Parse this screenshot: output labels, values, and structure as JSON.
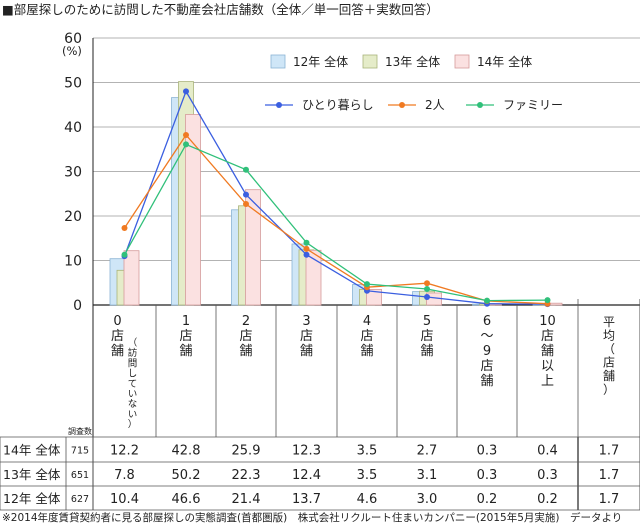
{
  "chart_data": {
    "type": "bar",
    "title": "■部屋探しのために訪問した不動産会社店舗数（全体／単一回答＋実数回答）",
    "y_unit": "(%)",
    "ylim": [
      0,
      60
    ],
    "yticks": [
      "0",
      "10",
      "20",
      "30",
      "40",
      "50",
      "60"
    ],
    "categories": [
      {
        "main": [
          "0",
          "店",
          "舗"
        ],
        "sub": "（訪問していない）"
      },
      {
        "main": [
          "1",
          "店",
          "舗"
        ]
      },
      {
        "main": [
          "2",
          "店",
          "舗"
        ]
      },
      {
        "main": [
          "3",
          "店",
          "舗"
        ]
      },
      {
        "main": [
          "4",
          "店",
          "舗"
        ]
      },
      {
        "main": [
          "5",
          "店",
          "舗"
        ]
      },
      {
        "main": [
          "6",
          "～",
          "9",
          "店",
          "舗"
        ]
      },
      {
        "main": [
          "10",
          "店",
          "舗",
          "以",
          "上"
        ]
      }
    ],
    "average_header": "平均（店舗）",
    "sample_header": "調査数",
    "series": [
      {
        "name": "12年 全体",
        "n": "627",
        "color": "#cfe6f7",
        "stroke": "#8ab4d4",
        "values": [
          10.4,
          46.6,
          21.4,
          13.7,
          4.6,
          3.0,
          0.2,
          0.2
        ],
        "labels": [
          "10.4",
          "46.6",
          "21.4",
          "13.7",
          "4.6",
          "3.0",
          "0.2",
          "0.2"
        ],
        "avg": "1.7"
      },
      {
        "name": "13年 全体",
        "n": "651",
        "color": "#e5ecc9",
        "stroke": "#a9b47a",
        "values": [
          7.8,
          50.2,
          22.3,
          12.4,
          3.5,
          3.1,
          0.3,
          0.3
        ],
        "labels": [
          "7.8",
          "50.2",
          "22.3",
          "12.4",
          "3.5",
          "3.1",
          "0.3",
          "0.3"
        ],
        "avg": "1.7"
      },
      {
        "name": "14年 全体",
        "n": "715",
        "color": "#fbe1e1",
        "stroke": "#d59b9b",
        "values": [
          12.2,
          42.8,
          25.9,
          12.3,
          3.5,
          2.7,
          0.3,
          0.4
        ],
        "labels": [
          "12.2",
          "42.8",
          "25.9",
          "12.3",
          "3.5",
          "2.7",
          "0.3",
          "0.4"
        ],
        "avg": "1.7"
      }
    ],
    "table_order": [
      2,
      1,
      0
    ],
    "line_series": [
      {
        "name": "ひとり暮らし",
        "color": "#3b5fe0",
        "values": [
          11.0,
          48.0,
          24.8,
          11.3,
          3.2,
          1.8,
          0.3,
          0.2
        ]
      },
      {
        "name": "2人",
        "color": "#f07a22",
        "values": [
          17.3,
          38.2,
          22.7,
          12.6,
          4.0,
          4.9,
          0.9,
          0.3
        ]
      },
      {
        "name": "ファミリー",
        "color": "#30c07a",
        "values": [
          11.3,
          36.1,
          30.4,
          14.0,
          4.7,
          3.6,
          1.0,
          1.1
        ]
      }
    ]
  },
  "footnote": "※2014年度賃貸契約者に見る部屋探しの実態調査(首都圏版)　株式会社リクルート住まいカンパニー(2015年5月実施)　データより"
}
